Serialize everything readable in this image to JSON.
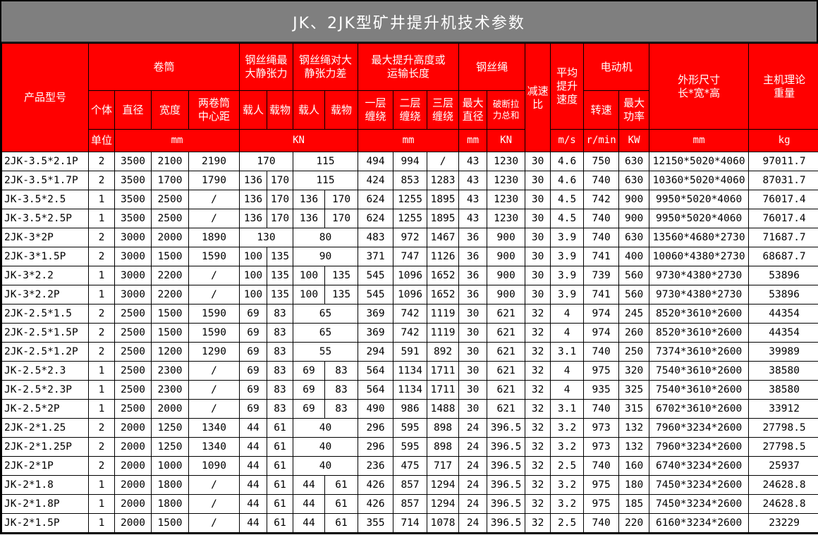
{
  "title": "JK、2JK型矿井提升机技术参数",
  "header": {
    "product_model": "产品型号",
    "unit_label": "单位",
    "groups": {
      "drum": "卷筒",
      "rope_max_static_tension": "钢丝绳最\n大静张力",
      "rope_static_tension_diff": "钢丝绳对大\n静张力差",
      "max_lift_height": "最大提升高度或\n运输长度",
      "wire_rope": "钢丝绳",
      "reduction_ratio": "减速\n比",
      "avg_lift_speed": "平均\n提升\n速度",
      "motor": "电动机",
      "overall_dimensions": "外形尺寸\n长*宽*高",
      "theoretical_weight": "主机理论\n重量"
    },
    "subs": {
      "count": "个体",
      "diameter": "直径",
      "width": "宽度",
      "drum_center_distance": "两卷筒\n中心距",
      "manned": "载人",
      "cargo": "载物",
      "layer1": "一层\n缠绕",
      "layer2": "二层\n缠绕",
      "layer3": "三层\n缠绕",
      "max_diameter": "最大\n直径",
      "breaking_force_sum": "破断拉\n力总和",
      "rotation_speed": "转速",
      "max_power": "最大\n功率"
    },
    "units": {
      "mm": "mm",
      "kn": "KN",
      "ms": "m/s",
      "rmin": "r/min",
      "kw": "KW",
      "kg": "kg"
    }
  },
  "rows": [
    [
      "2JK-3.5*2.1P",
      "2",
      "3500",
      "2100",
      "2190",
      {
        "v": "170",
        "s": 2
      },
      {
        "v": "115",
        "s": 2
      },
      "494",
      "994",
      "/",
      "43",
      "1230",
      "30",
      "4.6",
      "750",
      "630",
      "12150*5020*4060",
      "97011.7"
    ],
    [
      "2JK-3.5*1.7P",
      "2",
      "3500",
      "1700",
      "1790",
      "136",
      "170",
      {
        "v": "115",
        "s": 2
      },
      "424",
      "853",
      "1283",
      "43",
      "1230",
      "30",
      "4.6",
      "740",
      "630",
      "10360*5020*4060",
      "87031.7"
    ],
    [
      "JK-3.5*2.5",
      "1",
      "3500",
      "2500",
      "/",
      "136",
      "170",
      "136",
      "170",
      "624",
      "1255",
      "1895",
      "43",
      "1230",
      "30",
      "4.5",
      "742",
      "900",
      "9950*5020*4060",
      "76017.4"
    ],
    [
      "JK-3.5*2.5P",
      "1",
      "3500",
      "2500",
      "/",
      "136",
      "170",
      "136",
      "170",
      "624",
      "1255",
      "1895",
      "43",
      "1230",
      "30",
      "4.5",
      "740",
      "900",
      "9950*5020*4060",
      "76017.4"
    ],
    [
      "2JK-3*2P",
      "2",
      "3000",
      "2000",
      "1890",
      {
        "v": "130",
        "s": 2
      },
      {
        "v": "80",
        "s": 2
      },
      "483",
      "972",
      "1467",
      "36",
      "900",
      "30",
      "3.9",
      "740",
      "630",
      "13560*4680*2730",
      "71687.7"
    ],
    [
      "2JK-3*1.5P",
      "2",
      "3000",
      "1500",
      "1590",
      "100",
      "135",
      {
        "v": "90",
        "s": 2
      },
      "371",
      "747",
      "1126",
      "36",
      "900",
      "30",
      "3.9",
      "741",
      "400",
      "10060*4380*2730",
      "68687.7"
    ],
    [
      "JK-3*2.2",
      "1",
      "3000",
      "2200",
      "/",
      "100",
      "135",
      "100",
      "135",
      "545",
      "1096",
      "1652",
      "36",
      "900",
      "30",
      "3.9",
      "739",
      "560",
      "9730*4380*2730",
      "53896"
    ],
    [
      "JK-3*2.2P",
      "1",
      "3000",
      "2200",
      "/",
      "100",
      "135",
      "100",
      "135",
      "545",
      "1096",
      "1652",
      "36",
      "900",
      "30",
      "3.9",
      "741",
      "560",
      "9730*4380*2730",
      "53896"
    ],
    [
      "2JK-2.5*1.5",
      "2",
      "2500",
      "1500",
      "1590",
      "69",
      "83",
      {
        "v": "65",
        "s": 2
      },
      "369",
      "742",
      "1119",
      "30",
      "621",
      "32",
      "4",
      "974",
      "245",
      "8520*3610*2600",
      "44354"
    ],
    [
      "2JK-2.5*1.5P",
      "2",
      "2500",
      "1500",
      "1590",
      "69",
      "83",
      {
        "v": "65",
        "s": 2
      },
      "369",
      "742",
      "1119",
      "30",
      "621",
      "32",
      "4",
      "974",
      "260",
      "8520*3610*2600",
      "44354"
    ],
    [
      "2JK-2.5*1.2P",
      "2",
      "2500",
      "1200",
      "1290",
      "69",
      "83",
      {
        "v": "55",
        "s": 2
      },
      "294",
      "591",
      "892",
      "30",
      "621",
      "32",
      "3.1",
      "740",
      "250",
      "7374*3610*2600",
      "39989"
    ],
    [
      "JK-2.5*2.3",
      "1",
      "2500",
      "2300",
      "/",
      "69",
      "83",
      "69",
      "83",
      "564",
      "1134",
      "1711",
      "30",
      "621",
      "32",
      "4",
      "975",
      "320",
      "7540*3610*2600",
      "38580"
    ],
    [
      "JK-2.5*2.3P",
      "1",
      "2500",
      "2300",
      "/",
      "69",
      "83",
      "69",
      "83",
      "564",
      "1134",
      "1711",
      "30",
      "621",
      "32",
      "4",
      "935",
      "325",
      "7540*3610*2600",
      "38580"
    ],
    [
      "JK-2.5*2P",
      "1",
      "2500",
      "2000",
      "/",
      "69",
      "83",
      "69",
      "83",
      "490",
      "986",
      "1488",
      "30",
      "621",
      "32",
      "3.1",
      "740",
      "315",
      "6702*3610*2600",
      "33912"
    ],
    [
      "2JK-2*1.25",
      "2",
      "2000",
      "1250",
      "1340",
      "44",
      "61",
      {
        "v": "40",
        "s": 2
      },
      "296",
      "595",
      "898",
      "24",
      "396.5",
      "32",
      "3.2",
      "973",
      "132",
      "7960*3234*2600",
      "27798.5"
    ],
    [
      "2JK-2*1.25P",
      "2",
      "2000",
      "1250",
      "1340",
      "44",
      "61",
      {
        "v": "40",
        "s": 2
      },
      "296",
      "595",
      "898",
      "24",
      "396.5",
      "32",
      "3.2",
      "973",
      "132",
      "7960*3234*2600",
      "27798.5"
    ],
    [
      "2JK-2*1P",
      "2",
      "2000",
      "1000",
      "1090",
      "44",
      "61",
      {
        "v": "40",
        "s": 2
      },
      "236",
      "475",
      "717",
      "24",
      "396.5",
      "32",
      "2.5",
      "740",
      "160",
      "6740*3234*2600",
      "25937"
    ],
    [
      "JK-2*1.8",
      "1",
      "2000",
      "1800",
      "/",
      "44",
      "61",
      "44",
      "61",
      "426",
      "857",
      "1294",
      "24",
      "396.5",
      "32",
      "3.2",
      "975",
      "180",
      "7450*3234*2600",
      "24628.8"
    ],
    [
      "JK-2*1.8P",
      "1",
      "2000",
      "1800",
      "/",
      "44",
      "61",
      "44",
      "61",
      "426",
      "857",
      "1294",
      "24",
      "396.5",
      "32",
      "3.2",
      "975",
      "185",
      "7450*3234*2600",
      "24628.8"
    ],
    [
      "JK-2*1.5P",
      "1",
      "2000",
      "1500",
      "/",
      "44",
      "61",
      "44",
      "61",
      "355",
      "714",
      "1078",
      "24",
      "396.5",
      "32",
      "2.5",
      "740",
      "220",
      "6160*3234*2600",
      "23229"
    ]
  ]
}
